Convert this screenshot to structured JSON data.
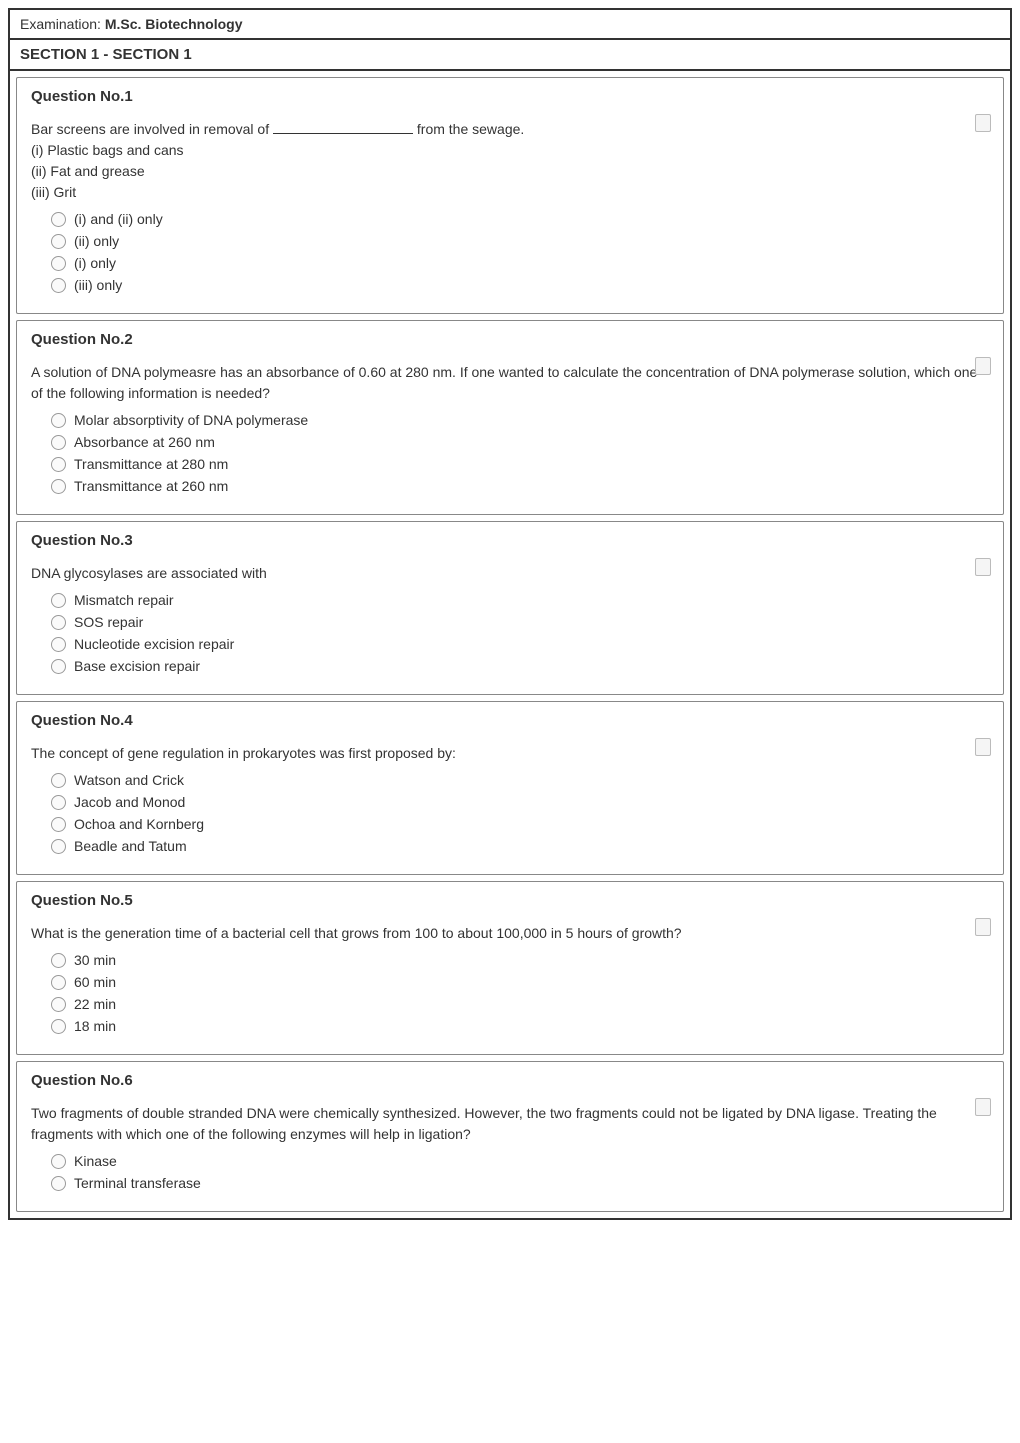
{
  "exam": {
    "label": "Examination:",
    "value": "M.Sc. Biotechnology"
  },
  "section": {
    "title": "SECTION 1 - SECTION 1"
  },
  "questions": [
    {
      "id": "q1",
      "title": "Question No.1",
      "text_pre": "Bar screens are involved in removal of ",
      "text_post": " from the sewage.",
      "subs": [
        "(i) Plastic bags and cans",
        "(ii) Fat and grease",
        "(iii) Grit"
      ],
      "options": [
        "(i) and (ii) only",
        "(ii) only",
        "(i) only",
        "(iii) only"
      ]
    },
    {
      "id": "q2",
      "title": "Question No.2",
      "text": "A solution of DNA polymeasre has an absorbance of 0.60 at 280 nm. If one wanted to calculate the concentration of DNA polymerase solution, which one of the following information is needed?",
      "options": [
        "Molar absorptivity of DNA polymerase",
        "Absorbance at 260 nm",
        "Transmittance at 280 nm",
        "Transmittance at 260 nm"
      ]
    },
    {
      "id": "q3",
      "title": "Question No.3",
      "text": "DNA glycosylases are associated with",
      "options": [
        "Mismatch repair",
        "SOS repair",
        "Nucleotide excision repair",
        "Base excision repair"
      ]
    },
    {
      "id": "q4",
      "title": "Question No.4",
      "text": "The concept of gene regulation in prokaryotes was first proposed by:",
      "options": [
        "Watson and Crick",
        "Jacob and Monod",
        "Ochoa and Kornberg",
        "Beadle and Tatum"
      ]
    },
    {
      "id": "q5",
      "title": "Question No.5",
      "text": "What is the generation time of a bacterial cell that grows from 100 to about 100,000 in 5 hours of growth?",
      "options": [
        "30 min",
        "60 min",
        "22 min",
        "18 min"
      ]
    },
    {
      "id": "q6",
      "title": "Question No.6",
      "text": "Two fragments of double stranded DNA were chemically synthesized. However, the two fragments could not be ligated by DNA ligase. Treating the fragments with which one of the following enzymes will help in ligation?",
      "options": [
        "Kinase",
        "Terminal transferase"
      ]
    }
  ]
}
